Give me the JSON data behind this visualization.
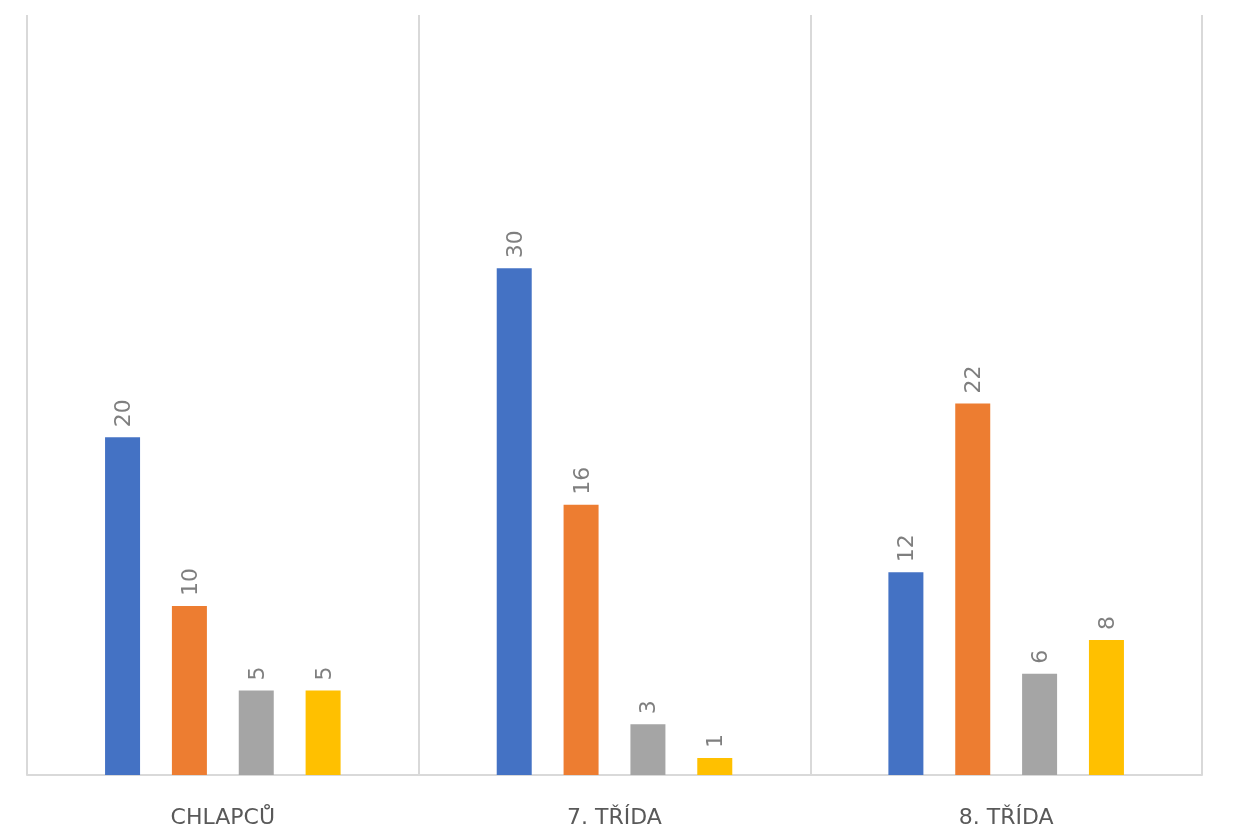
{
  "chart_data": {
    "type": "bar",
    "categories": [
      "CHLAPCŮ",
      "7. TŘÍDA",
      "8. TŘÍDA"
    ],
    "series": [
      {
        "color": "#4472c4",
        "values": [
          20,
          30,
          12
        ]
      },
      {
        "color": "#ed7d31",
        "values": [
          10,
          16,
          22
        ]
      },
      {
        "color": "#a5a5a5",
        "values": [
          5,
          3,
          6
        ]
      },
      {
        "color": "#ffc000",
        "values": [
          5,
          1,
          8
        ]
      }
    ],
    "ylim": [
      0,
      45
    ],
    "data_labels": true,
    "grid": "x"
  }
}
